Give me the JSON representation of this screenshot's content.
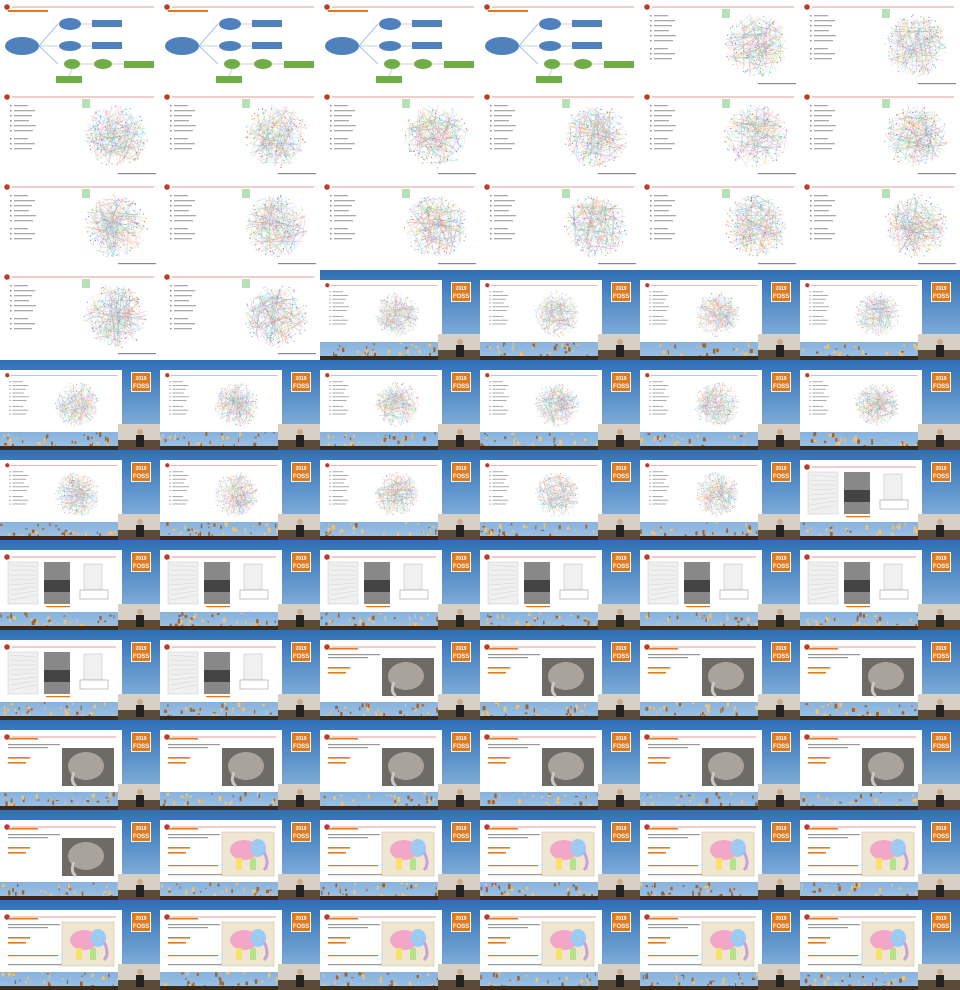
{
  "contact_sheet": {
    "columns": 6,
    "rows": 11,
    "cells": [
      "diagram",
      "diagram",
      "diagram",
      "diagram",
      "network",
      "network",
      "network",
      "network",
      "network",
      "network",
      "network",
      "network",
      "network",
      "network",
      "network",
      "network",
      "network",
      "network",
      "network",
      "network",
      "network-stage",
      "network-stage",
      "network-stage",
      "network-stage",
      "network-stage",
      "network-stage",
      "network-stage",
      "network-stage",
      "network-stage",
      "network-stage",
      "network-stage",
      "network-stage",
      "network-stage",
      "network-stage",
      "network-stage",
      "drawings-stage",
      "drawings-stage",
      "drawings-stage",
      "drawings-stage",
      "drawings-stage",
      "drawings-stage",
      "drawings-stage",
      "drawings-stage",
      "drawings-stage",
      "elephant-stage",
      "elephant-stage",
      "elephant-stage",
      "elephant-stage",
      "elephant-stage",
      "elephant-stage",
      "elephant-stage",
      "elephant-stage",
      "elephant-stage",
      "elephant-stage",
      "elephant-stage",
      "colored-stage",
      "colored-stage",
      "colored-stage",
      "colored-stage",
      "colored-stage",
      "colored-stage",
      "colored-stage",
      "colored-stage",
      "colored-stage",
      "colored-stage",
      "colored-stage"
    ]
  },
  "colors": {
    "accent_orange": "#e07a1f",
    "node_blue": "#4f81bd",
    "node_green": "#70ad47",
    "sky_top": "#2d6fb5",
    "sky_bottom": "#9ec3e6",
    "slide_red": "#c0392b"
  },
  "badge": {
    "year": "2019",
    "brand": "FOSS"
  },
  "icons": {
    "slide_logo": "red-circle-logo",
    "badge": "conference-badge"
  }
}
